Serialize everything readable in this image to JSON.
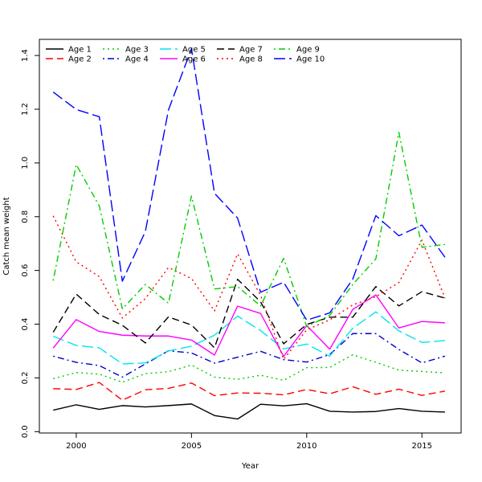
{
  "chart_data": {
    "type": "line",
    "title": "",
    "xlabel": "Year",
    "ylabel": "Catch mean weight",
    "xlim": [
      1998.4,
      2016.7
    ],
    "ylim": [
      -0.005,
      1.46
    ],
    "xticks": [
      2000,
      2005,
      2010,
      2015
    ],
    "yticks": [
      0.0,
      0.2,
      0.4,
      0.6,
      0.8,
      1.0,
      1.2,
      1.4
    ],
    "ytick_labels": [
      "0.0",
      "0.2",
      "0.4",
      "0.6",
      "0.8",
      "1.0",
      "1.2",
      "1.4"
    ],
    "legend_position": "top-left",
    "x": [
      1999,
      2000,
      2001,
      2002,
      2003,
      2004,
      2005,
      2006,
      2007,
      2008,
      2009,
      2010,
      2011,
      2012,
      2013,
      2014,
      2015,
      2016
    ],
    "series": [
      {
        "name": "Age 1",
        "color": "#000000",
        "dash": "solid",
        "values": [
          0.08,
          0.1,
          0.083,
          0.097,
          0.092,
          0.097,
          0.103,
          0.06,
          0.047,
          0.102,
          0.096,
          0.104,
          0.076,
          0.073,
          0.075,
          0.086,
          0.076,
          0.073
        ]
      },
      {
        "name": "Age 2",
        "color": "#ff0000",
        "dash": "dashed",
        "values": [
          0.16,
          0.157,
          0.183,
          0.117,
          0.156,
          0.161,
          0.181,
          0.134,
          0.144,
          0.143,
          0.137,
          0.157,
          0.141,
          0.167,
          0.139,
          0.158,
          0.135,
          0.151
        ]
      },
      {
        "name": "Age 3",
        "color": "#00cd00",
        "dash": "dotted",
        "values": [
          0.197,
          0.22,
          0.214,
          0.184,
          0.216,
          0.223,
          0.248,
          0.203,
          0.195,
          0.21,
          0.191,
          0.238,
          0.239,
          0.286,
          0.258,
          0.229,
          0.224,
          0.219
        ]
      },
      {
        "name": "Age 4",
        "color": "#0000cd",
        "dash": "dotdash",
        "values": [
          0.281,
          0.258,
          0.246,
          0.203,
          0.252,
          0.301,
          0.293,
          0.255,
          0.277,
          0.299,
          0.268,
          0.259,
          0.287,
          0.365,
          0.365,
          0.306,
          0.256,
          0.281
        ]
      },
      {
        "name": "Age 5",
        "color": "#00e5ee",
        "dash": "longdash",
        "values": [
          0.355,
          0.321,
          0.312,
          0.252,
          0.256,
          0.3,
          0.318,
          0.359,
          0.43,
          0.376,
          0.308,
          0.326,
          0.281,
          0.385,
          0.446,
          0.375,
          0.332,
          0.339
        ]
      },
      {
        "name": "Age 6",
        "color": "#ff00ff",
        "dash": "solid",
        "values": [
          0.311,
          0.417,
          0.373,
          0.359,
          0.356,
          0.356,
          0.341,
          0.285,
          0.467,
          0.44,
          0.28,
          0.395,
          0.307,
          0.455,
          0.509,
          0.386,
          0.41,
          0.405
        ]
      },
      {
        "name": "Age 7",
        "color": "#000000",
        "dash": "dashed",
        "values": [
          0.37,
          0.512,
          0.436,
          0.396,
          0.33,
          0.427,
          0.397,
          0.312,
          0.567,
          0.483,
          0.327,
          0.399,
          0.426,
          0.426,
          0.54,
          0.468,
          0.521,
          0.497
        ]
      },
      {
        "name": "Age 8",
        "color": "#ff0000",
        "dash": "dotted",
        "values": [
          0.803,
          0.632,
          0.577,
          0.423,
          0.495,
          0.611,
          0.57,
          0.449,
          0.662,
          0.507,
          0.269,
          0.379,
          0.416,
          0.472,
          0.502,
          0.555,
          0.713,
          0.497
        ]
      },
      {
        "name": "Age 9",
        "color": "#00cd00",
        "dash": "dotdash",
        "values": [
          0.562,
          0.994,
          0.84,
          0.457,
          0.548,
          0.478,
          0.877,
          0.531,
          0.54,
          0.468,
          0.645,
          0.391,
          0.433,
          0.548,
          0.643,
          1.114,
          0.686,
          0.697
        ]
      },
      {
        "name": "Age 10",
        "color": "#0000ff",
        "dash": "longdash",
        "values": [
          1.264,
          1.199,
          1.172,
          0.56,
          0.745,
          1.197,
          1.425,
          0.887,
          0.795,
          0.519,
          0.556,
          0.415,
          0.442,
          0.568,
          0.804,
          0.729,
          0.769,
          0.649
        ]
      }
    ]
  }
}
